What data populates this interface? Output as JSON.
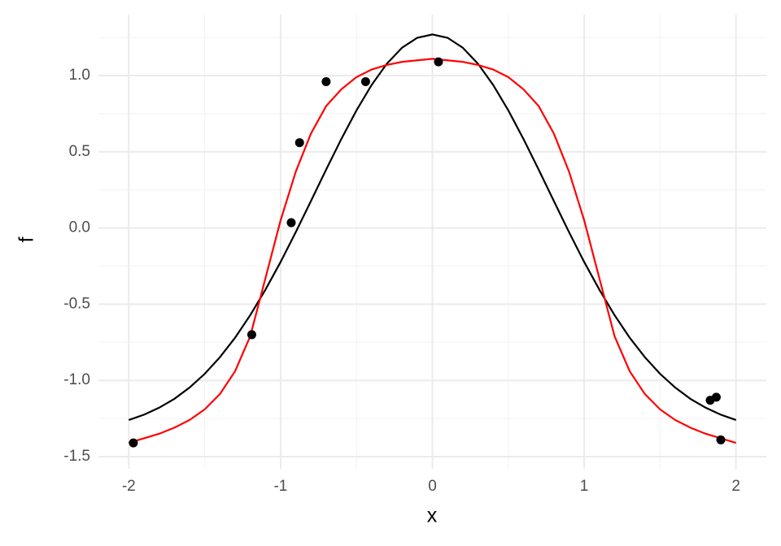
{
  "chart_data": {
    "type": "line",
    "xlabel": "x",
    "ylabel": "f",
    "x": [
      -2.0,
      -1.9,
      -1.8,
      -1.7,
      -1.6,
      -1.5,
      -1.4,
      -1.3,
      -1.2,
      -1.1,
      -1.0,
      -0.9,
      -0.8,
      -0.7,
      -0.6,
      -0.5,
      -0.4,
      -0.3,
      -0.2,
      -0.1,
      0.0,
      0.1,
      0.2,
      0.3,
      0.4,
      0.5,
      0.6,
      0.7,
      0.8,
      0.9,
      1.0,
      1.1,
      1.2,
      1.3,
      1.4,
      1.5,
      1.6,
      1.7,
      1.8,
      1.9,
      2.0
    ],
    "series": [
      {
        "color": "#000000",
        "values": [
          -1.26,
          -1.225,
          -1.179,
          -1.121,
          -1.047,
          -0.957,
          -0.848,
          -0.72,
          -0.572,
          -0.405,
          -0.223,
          -0.027,
          0.177,
          0.383,
          0.584,
          0.772,
          0.939,
          1.078,
          1.183,
          1.248,
          1.27,
          1.248,
          1.183,
          1.078,
          0.939,
          0.772,
          0.584,
          0.383,
          0.177,
          -0.027,
          -0.223,
          -0.405,
          -0.572,
          -0.72,
          -0.848,
          -0.957,
          -1.047,
          -1.121,
          -1.179,
          -1.225,
          -1.26
        ]
      },
      {
        "color": "#ff0000",
        "values": [
          -1.41,
          -1.38,
          -1.35,
          -1.31,
          -1.26,
          -1.19,
          -1.09,
          -0.94,
          -0.71,
          -0.33,
          0.05,
          0.37,
          0.62,
          0.8,
          0.91,
          0.99,
          1.04,
          1.07,
          1.09,
          1.1,
          1.11,
          1.1,
          1.09,
          1.07,
          1.04,
          0.99,
          0.91,
          0.8,
          0.62,
          0.37,
          0.05,
          -0.33,
          -0.71,
          -0.94,
          -1.09,
          -1.19,
          -1.26,
          -1.31,
          -1.35,
          -1.38,
          -1.41
        ]
      },
      {
        "type": "scatter",
        "color": "#000000",
        "x": [
          -1.97,
          -1.19,
          -0.93,
          -0.875,
          -0.7,
          -0.44,
          0.04,
          1.83,
          1.87,
          1.9
        ],
        "values": [
          -1.41,
          -0.7,
          0.035,
          0.56,
          0.96,
          0.96,
          1.09,
          -1.13,
          -1.11,
          -1.39
        ]
      }
    ],
    "xlim": [
      -2.2,
      2.2
    ],
    "ylim": [
      -1.58,
      1.4
    ],
    "xticks": [
      -2,
      -1,
      0,
      1,
      2
    ],
    "yticks": [
      -1.5,
      {
        "value": -1,
        "label": "-1.0"
      },
      -0.5,
      {
        "value": 0,
        "label": "0.0"
      },
      0.5,
      {
        "value": 1,
        "label": "1.0"
      }
    ],
    "xminor": [
      -1.5,
      -0.5,
      0.5,
      1.5
    ],
    "yminor": [
      -1.25,
      -0.75,
      -0.25,
      0.25,
      0.75,
      1.25
    ],
    "grid": true
  }
}
